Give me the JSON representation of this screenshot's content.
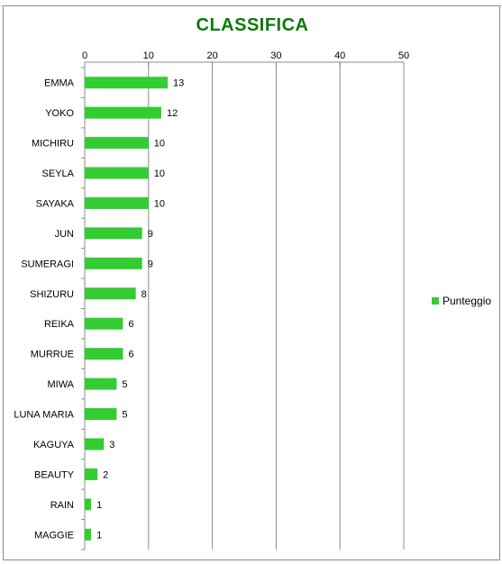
{
  "chart_data": {
    "type": "bar",
    "orientation": "horizontal",
    "title": "CLASSIFICA",
    "categories": [
      "EMMA",
      "YOKO",
      "MICHIRU",
      "SEYLA",
      "SAYAKA",
      "JUN",
      "SUMERAGI",
      "SHIZURU",
      "REIKA",
      "MURRUE",
      "MIWA",
      "LUNA MARIA",
      "KAGUYA",
      "BEAUTY",
      "RAIN",
      "MAGGIE"
    ],
    "series": [
      {
        "name": "Punteggio",
        "values": [
          13,
          12,
          10,
          10,
          10,
          9,
          9,
          8,
          6,
          6,
          5,
          5,
          3,
          2,
          1,
          1
        ],
        "color": "#33cc33"
      }
    ],
    "xlim": [
      0,
      50
    ],
    "xticks": [
      0,
      10,
      20,
      30,
      40,
      50
    ],
    "x_axis_position": "top",
    "grid": "vertical",
    "legend_position": "right",
    "title_color": "#0b7a0b",
    "data_labels": true
  }
}
